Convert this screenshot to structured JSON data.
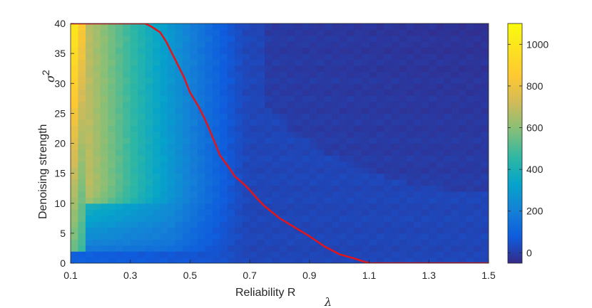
{
  "chart_data": {
    "type": "heatmap",
    "title": "",
    "xlabel": "Reliability R",
    "xlabel_subscript": "λ",
    "ylabel": "Denoising strength",
    "ylabel_symbol": "σ",
    "ylabel_superscript": "2",
    "xlim": [
      0.1,
      1.5
    ],
    "ylim": [
      0,
      40
    ],
    "x_ticks": [
      "0.1",
      "0.3",
      "0.5",
      "0.7",
      "0.9",
      "1.1",
      "1.3",
      "1.5"
    ],
    "y_ticks": [
      "0",
      "5",
      "10",
      "15",
      "20",
      "25",
      "30",
      "35",
      "40"
    ],
    "colorbar": {
      "range": [
        -50,
        1100
      ],
      "ticks": [
        "0",
        "200",
        "400",
        "600",
        "800",
        "1000"
      ],
      "colormap": "parula"
    },
    "heatmap": {
      "x_resolution": 0.025,
      "y_resolution": 1,
      "value_range": [
        -50,
        1100
      ]
    },
    "boundary_line": {
      "color": "#e4141b",
      "x": [
        0.1,
        0.35,
        0.37,
        0.4,
        0.42,
        0.45,
        0.48,
        0.5,
        0.53,
        0.55,
        0.58,
        0.6,
        0.63,
        0.65,
        0.68,
        0.7,
        0.73,
        0.75,
        0.8,
        0.85,
        0.9,
        0.95,
        1.0,
        1.05,
        1.1,
        1.5
      ],
      "y": [
        40,
        40,
        39.5,
        38.5,
        37,
        34,
        31,
        28.5,
        26,
        24,
        20.5,
        18,
        16,
        14.5,
        13.2,
        12.2,
        10.5,
        9.5,
        7.5,
        6,
        4.5,
        2.8,
        1.5,
        0.8,
        0,
        0
      ]
    },
    "grid": false,
    "legend": "none"
  }
}
